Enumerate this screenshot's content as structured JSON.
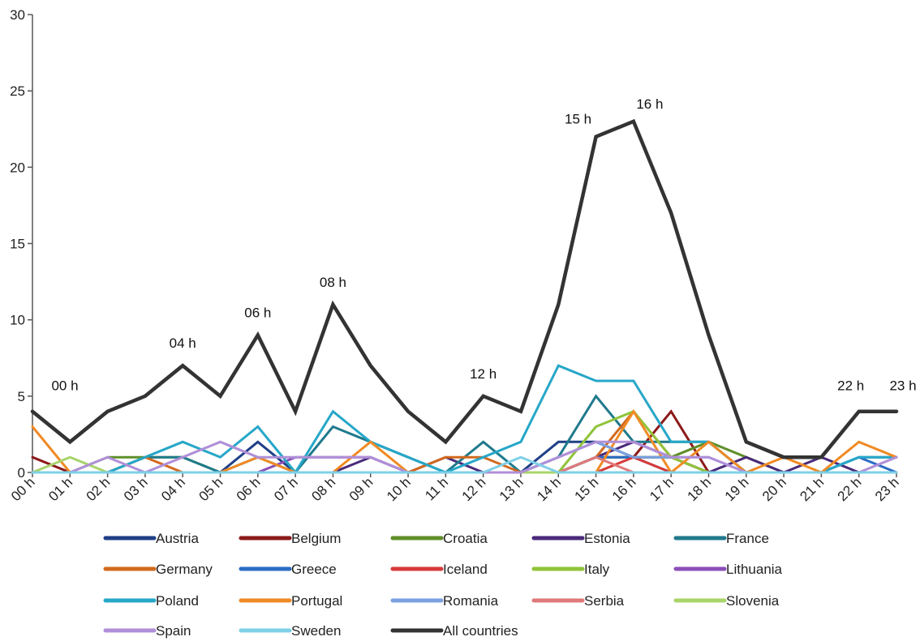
{
  "chart_data": {
    "type": "line",
    "title": "",
    "xlabel": "",
    "ylabel": "",
    "ylim": [
      0,
      30
    ],
    "y_ticks": [
      "0",
      "5",
      "10",
      "15",
      "20",
      "25",
      "30"
    ],
    "grid": false,
    "legend_position": "bottom",
    "categories": [
      "00 h",
      "01 h",
      "02 h",
      "03 h",
      "04 h",
      "05 h",
      "06 h",
      "07 h",
      "08 h",
      "09 h",
      "10 h",
      "11 h",
      "12 h",
      "13 h",
      "14 h",
      "15 h",
      "16 h",
      "17 h",
      "18 h",
      "19 h",
      "20 h",
      "21 h",
      "22 h",
      "23 h"
    ],
    "series": [
      {
        "name": "Austria",
        "color": "#1f3f86",
        "values": [
          0,
          0,
          0,
          0,
          0,
          0,
          2,
          0,
          0,
          0,
          0,
          0,
          0,
          0,
          2,
          2,
          1,
          1,
          0,
          0,
          0,
          0,
          0,
          0
        ]
      },
      {
        "name": "Belgium",
        "color": "#8b1a1a",
        "values": [
          1,
          0,
          0,
          0,
          0,
          0,
          0,
          0,
          0,
          0,
          0,
          0,
          0,
          0,
          0,
          1,
          1,
          4,
          0,
          0,
          0,
          0,
          0,
          0
        ]
      },
      {
        "name": "Croatia",
        "color": "#5f8f2a",
        "values": [
          0,
          0,
          1,
          1,
          1,
          0,
          0,
          0,
          0,
          0,
          0,
          0,
          0,
          0,
          0,
          1,
          1,
          1,
          2,
          1,
          0,
          0,
          0,
          0
        ]
      },
      {
        "name": "Estonia",
        "color": "#4a2a7a",
        "values": [
          0,
          0,
          0,
          0,
          0,
          0,
          0,
          0,
          0,
          1,
          0,
          1,
          0,
          0,
          0,
          1,
          2,
          1,
          0,
          1,
          0,
          1,
          0,
          0
        ]
      },
      {
        "name": "France",
        "color": "#1f7a8c",
        "values": [
          0,
          0,
          0,
          1,
          1,
          0,
          1,
          0,
          3,
          2,
          1,
          0,
          2,
          0,
          1,
          5,
          2,
          2,
          2,
          0,
          0,
          0,
          1,
          1
        ]
      },
      {
        "name": "Germany",
        "color": "#d2691e",
        "values": [
          0,
          0,
          0,
          1,
          0,
          0,
          0,
          0,
          0,
          0,
          0,
          1,
          1,
          0,
          0,
          1,
          4,
          1,
          0,
          0,
          0,
          0,
          0,
          0
        ]
      },
      {
        "name": "Greece",
        "color": "#2a6cc4",
        "values": [
          0,
          0,
          0,
          0,
          0,
          0,
          0,
          0,
          0,
          0,
          0,
          0,
          0,
          0,
          0,
          1,
          1,
          0,
          0,
          0,
          0,
          0,
          1,
          0
        ]
      },
      {
        "name": "Iceland",
        "color": "#d83a3a",
        "values": [
          0,
          0,
          0,
          0,
          0,
          0,
          0,
          0,
          0,
          0,
          0,
          0,
          0,
          0,
          0,
          0,
          1,
          0,
          0,
          0,
          0,
          0,
          0,
          0
        ]
      },
      {
        "name": "Italy",
        "color": "#8fc43a",
        "values": [
          0,
          0,
          0,
          0,
          0,
          0,
          0,
          0,
          0,
          0,
          0,
          0,
          0,
          0,
          0,
          3,
          4,
          1,
          0,
          0,
          0,
          0,
          0,
          0
        ]
      },
      {
        "name": "Lithuania",
        "color": "#8b4fb8",
        "values": [
          0,
          0,
          0,
          0,
          0,
          0,
          0,
          1,
          1,
          1,
          0,
          0,
          0,
          0,
          0,
          0,
          0,
          0,
          0,
          0,
          0,
          0,
          0,
          0
        ]
      },
      {
        "name": "Poland",
        "color": "#27a7c8",
        "values": [
          0,
          0,
          0,
          1,
          2,
          1,
          3,
          0,
          4,
          2,
          1,
          0,
          1,
          2,
          7,
          6,
          6,
          2,
          2,
          0,
          0,
          0,
          1,
          1
        ]
      },
      {
        "name": "Portugal",
        "color": "#f08a24",
        "values": [
          3,
          0,
          0,
          0,
          0,
          0,
          1,
          0,
          0,
          2,
          0,
          0,
          0,
          0,
          0,
          0,
          4,
          0,
          2,
          0,
          1,
          0,
          2,
          1
        ]
      },
      {
        "name": "Romania",
        "color": "#7aa0e0",
        "values": [
          0,
          0,
          0,
          0,
          0,
          0,
          0,
          0,
          0,
          0,
          0,
          0,
          0,
          0,
          1,
          2,
          1,
          1,
          1,
          0,
          0,
          0,
          0,
          0
        ]
      },
      {
        "name": "Serbia",
        "color": "#e07a7a",
        "values": [
          0,
          0,
          0,
          0,
          0,
          0,
          0,
          0,
          0,
          0,
          0,
          0,
          0,
          0,
          0,
          1,
          0,
          0,
          0,
          0,
          0,
          0,
          0,
          0
        ]
      },
      {
        "name": "Slovenia",
        "color": "#a8d46a",
        "values": [
          0,
          1,
          0,
          0,
          0,
          0,
          0,
          0,
          0,
          0,
          0,
          0,
          0,
          0,
          0,
          0,
          0,
          0,
          0,
          0,
          0,
          0,
          0,
          0
        ]
      },
      {
        "name": "Spain",
        "color": "#b08fd8",
        "values": [
          0,
          0,
          1,
          0,
          1,
          2,
          1,
          1,
          1,
          1,
          0,
          0,
          0,
          0,
          1,
          2,
          2,
          1,
          1,
          0,
          0,
          0,
          0,
          1
        ]
      },
      {
        "name": "Sweden",
        "color": "#7fd0e8",
        "values": [
          0,
          0,
          0,
          0,
          0,
          0,
          0,
          0,
          0,
          0,
          0,
          0,
          0,
          1,
          0,
          0,
          0,
          0,
          0,
          0,
          0,
          0,
          0,
          0
        ]
      },
      {
        "name": "All countries",
        "color": "#333333",
        "values": [
          4,
          2,
          4,
          5,
          7,
          5,
          9,
          4,
          11,
          7,
          4,
          2,
          5,
          4,
          11,
          22,
          23,
          17,
          9,
          2,
          1,
          1,
          4,
          4
        ]
      }
    ],
    "annotations": [
      {
        "label": "00 h",
        "category": "00 h",
        "value": 4
      },
      {
        "label": "04 h",
        "category": "04 h",
        "value": 7
      },
      {
        "label": "06 h",
        "category": "06 h",
        "value": 9
      },
      {
        "label": "08 h",
        "category": "08 h",
        "value": 11
      },
      {
        "label": "12 h",
        "category": "12 h",
        "value": 5
      },
      {
        "label": "15 h",
        "category": "15 h",
        "value": 22
      },
      {
        "label": "16 h",
        "category": "16 h",
        "value": 23
      },
      {
        "label": "22 h",
        "category": "22 h",
        "value": 4
      },
      {
        "label": "23 h",
        "category": "23 h",
        "value": 4
      }
    ]
  }
}
